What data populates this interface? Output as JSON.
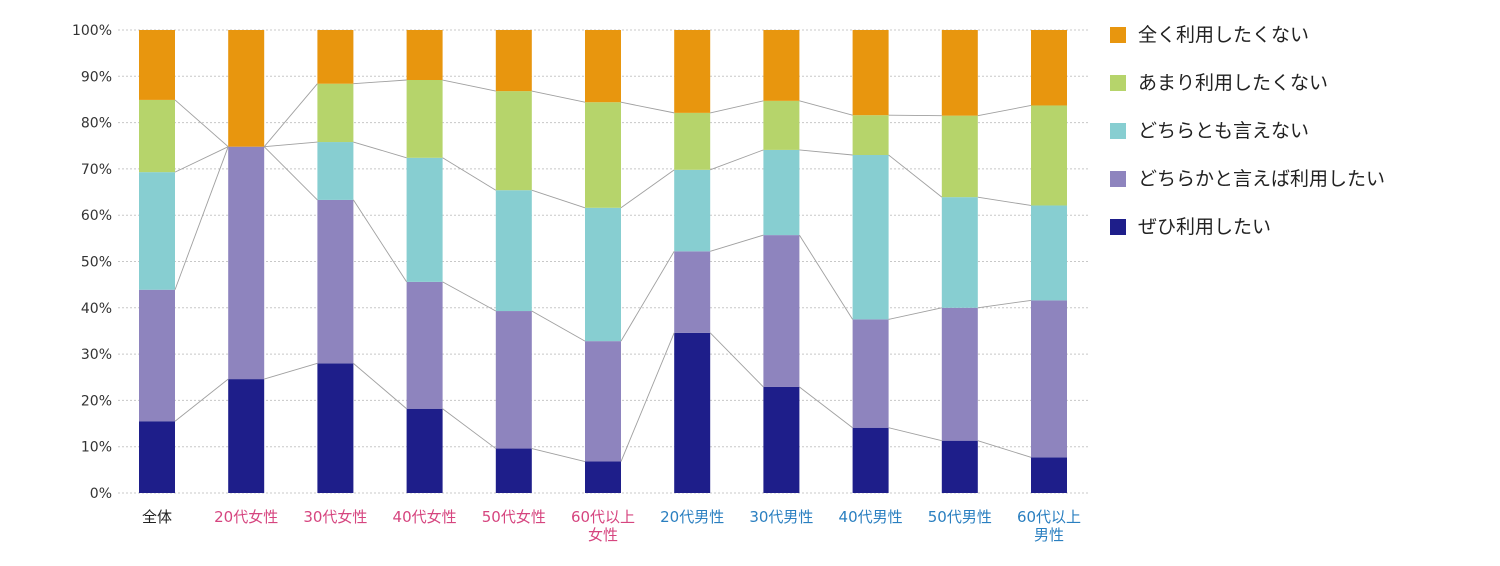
{
  "chart_data": {
    "type": "bar",
    "stacked": true,
    "percent": true,
    "ylim": [
      0,
      100
    ],
    "yticks": [
      0,
      10,
      20,
      30,
      40,
      50,
      60,
      70,
      80,
      90,
      100
    ],
    "ytick_labels": [
      "0%",
      "10%",
      "20%",
      "30%",
      "40%",
      "50%",
      "60%",
      "70%",
      "80%",
      "90%",
      "100%"
    ],
    "grid": "horizontal-dotted",
    "legend_position": "right",
    "connector_lines": true,
    "categories": [
      {
        "label": [
          "全体"
        ],
        "color": "#222222"
      },
      {
        "label": [
          "20代女性"
        ],
        "color": "#d6457f"
      },
      {
        "label": [
          "30代女性"
        ],
        "color": "#d6457f"
      },
      {
        "label": [
          "40代女性"
        ],
        "color": "#d6457f"
      },
      {
        "label": [
          "50代女性"
        ],
        "color": "#d6457f"
      },
      {
        "label": [
          "60代以上",
          "女性"
        ],
        "color": "#d6457f"
      },
      {
        "label": [
          "20代男性"
        ],
        "color": "#2a7fc0"
      },
      {
        "label": [
          "30代男性"
        ],
        "color": "#2a7fc0"
      },
      {
        "label": [
          "40代男性"
        ],
        "color": "#2a7fc0"
      },
      {
        "label": [
          "50代男性"
        ],
        "color": "#2a7fc0"
      },
      {
        "label": [
          "60代以上",
          "男性"
        ],
        "color": "#2a7fc0"
      }
    ],
    "series": [
      {
        "name": "ぜひ利用したい",
        "color": "#1e1e8a",
        "values": [
          15.5,
          24.6,
          28.0,
          18.2,
          9.6,
          6.8,
          34.6,
          22.9,
          14.1,
          11.3,
          7.7
        ]
      },
      {
        "name": "どちらかと言えば利用したい",
        "color": "#8e84be",
        "values": [
          28.4,
          50.2,
          35.3,
          27.4,
          29.7,
          26.0,
          17.6,
          32.8,
          23.4,
          28.7,
          33.9
        ]
      },
      {
        "name": "どちらとも言えない",
        "color": "#87ced1",
        "values": [
          25.4,
          0.0,
          12.5,
          26.8,
          26.1,
          28.8,
          17.6,
          18.4,
          35.5,
          23.9,
          20.5
        ]
      },
      {
        "name": "あまり利用したくない",
        "color": "#b6d46b",
        "values": [
          15.6,
          0.0,
          12.6,
          16.8,
          21.4,
          22.8,
          12.3,
          10.6,
          8.6,
          17.6,
          21.6
        ]
      },
      {
        "name": "全く利用したくない",
        "color": "#e8960e",
        "values": [
          15.1,
          25.2,
          11.6,
          10.8,
          13.2,
          15.6,
          17.9,
          15.3,
          18.4,
          18.5,
          16.3
        ]
      }
    ],
    "legend_order": [
      "全く利用したくない",
      "あまり利用したくない",
      "どちらとも言えない",
      "どちらかと言えば利用したい",
      "ぜひ利用したい"
    ]
  }
}
